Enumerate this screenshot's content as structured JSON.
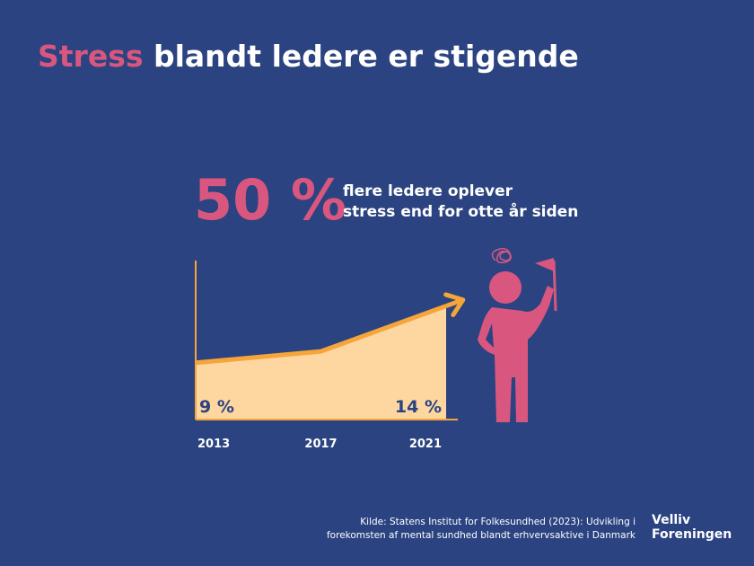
{
  "header": {
    "title_highlight": "Stress",
    "title_rest": "blandt ledere er stigende"
  },
  "stat": {
    "figure": "50 %",
    "text": [
      "flere ledere oplever",
      "stress end for otte år siden"
    ]
  },
  "chart_data": {
    "type": "area",
    "categories": [
      "2013",
      "2017",
      "2021"
    ],
    "values": [
      9,
      10,
      14
    ],
    "value_labels": [
      "9 %",
      null,
      "14 %"
    ],
    "ylim": [
      4,
      18
    ],
    "color": "#f5a53a",
    "fill": "#fdd6a0"
  },
  "footer": {
    "source": [
      "Kilde: Statens Institut for Folkesundhed (2023): Udvikling i",
      "forekomsten af mental sundhed blandt erhvervsaktive i Danmark"
    ],
    "logo": [
      "Velliv",
      "Foreningen"
    ]
  }
}
